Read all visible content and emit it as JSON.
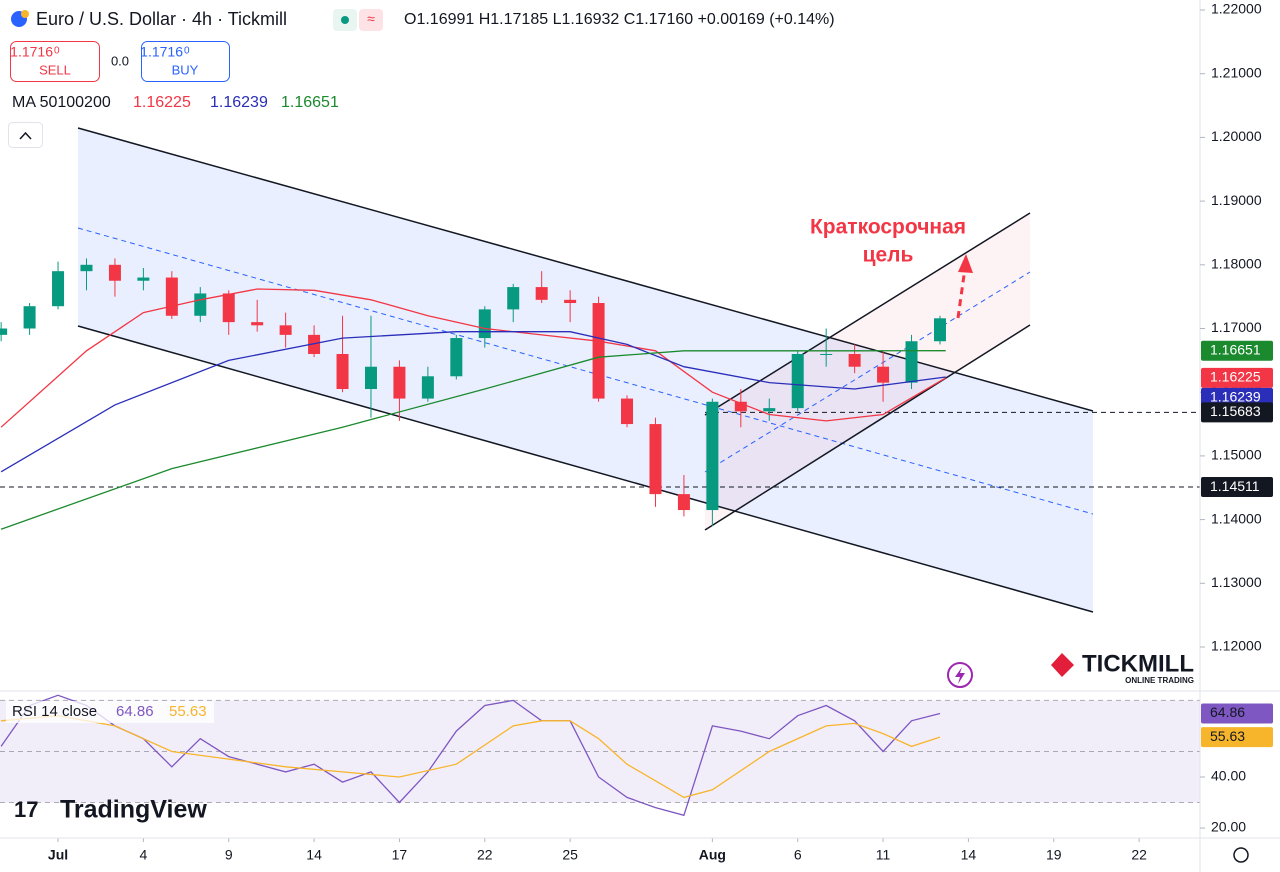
{
  "header": {
    "title": "Euro / U.S. Dollar · 4h · Tickmill",
    "ohlc": "O1.16991 H1.17185 L1.16932 C1.17160 +0.00169 (+0.14%)",
    "sell_price": "1.1716",
    "sell_pip": "0",
    "sell": "SELL",
    "spread": "0.0",
    "buy_price": "1.1716",
    "buy_pip": "0",
    "buy": "BUY",
    "ma_label": "MA 50100200",
    "rsi_label": "RSI 14 close",
    "annotation": [
      "Краткосрочная",
      "цель"
    ]
  },
  "branding": {
    "broker": "TICKMILL",
    "broker_tagline": "ONLINE TRADING",
    "platform": "TradingView"
  },
  "chart_data": [
    {
      "type": "candlestick",
      "up_color": "#089981",
      "down_color": "#f23645",
      "xlim": [
        -2.04,
        40.14
      ],
      "xticks": [
        {
          "value": 0,
          "label": "Jul"
        },
        {
          "value": 3,
          "label": "4"
        },
        {
          "value": 6,
          "label": "9"
        },
        {
          "value": 9,
          "label": "14"
        },
        {
          "value": 12,
          "label": "17"
        },
        {
          "value": 15,
          "label": "22"
        },
        {
          "value": 18,
          "label": "25"
        },
        {
          "value": 23,
          "label": "Aug"
        },
        {
          "value": 26,
          "label": "6"
        },
        {
          "value": 29,
          "label": "11"
        },
        {
          "value": 32,
          "label": "14"
        },
        {
          "value": 35,
          "label": "19"
        },
        {
          "value": 38,
          "label": "22"
        }
      ],
      "ylim": [
        1.11325,
        1.22157
      ],
      "yticks": [
        {
          "value": 1.12,
          "label": "1.12000"
        },
        {
          "value": 1.13,
          "label": "1.13000"
        },
        {
          "value": 1.14,
          "label": "1.14000"
        },
        {
          "value": 1.15,
          "label": "1.15000"
        },
        {
          "value": 1.16,
          "label": "1.16000"
        },
        {
          "value": 1.17,
          "label": "1.17000"
        },
        {
          "value": 1.18,
          "label": "1.18000"
        },
        {
          "value": 1.19,
          "label": "1.19000"
        },
        {
          "value": 1.2,
          "label": "1.20000"
        },
        {
          "value": 1.21,
          "label": "1.21000"
        },
        {
          "value": 1.22,
          "label": "1.22000"
        }
      ],
      "x": [
        -2,
        -1,
        0,
        1,
        2,
        3,
        4,
        5,
        6,
        7,
        8,
        9,
        10,
        11,
        12,
        13,
        14,
        15,
        16,
        17,
        18,
        19,
        20,
        21,
        22,
        23,
        24,
        25,
        26,
        27,
        28,
        29,
        30,
        31
      ],
      "open": [
        1.169,
        1.17,
        1.1735,
        1.179,
        1.18,
        1.1775,
        1.178,
        1.172,
        1.1755,
        1.171,
        1.1705,
        1.169,
        1.166,
        1.1605,
        1.164,
        1.159,
        1.1625,
        1.1685,
        1.173,
        1.1765,
        1.1745,
        1.174,
        1.159,
        1.155,
        1.144,
        1.1415,
        1.1585,
        1.157,
        1.1575,
        1.166,
        1.166,
        1.164,
        1.1615,
        1.168
      ],
      "high": [
        1.171,
        1.174,
        1.1805,
        1.181,
        1.181,
        1.1795,
        1.179,
        1.1765,
        1.176,
        1.1745,
        1.1725,
        1.1705,
        1.172,
        1.172,
        1.165,
        1.164,
        1.169,
        1.1735,
        1.177,
        1.179,
        1.176,
        1.175,
        1.1595,
        1.156,
        1.147,
        1.159,
        1.1605,
        1.159,
        1.1665,
        1.17,
        1.1675,
        1.1665,
        1.169,
        1.172
      ],
      "low": [
        1.168,
        1.169,
        1.173,
        1.176,
        1.175,
        1.176,
        1.1715,
        1.171,
        1.169,
        1.1695,
        1.167,
        1.1655,
        1.16,
        1.156,
        1.1555,
        1.1585,
        1.162,
        1.167,
        1.171,
        1.174,
        1.171,
        1.1585,
        1.1545,
        1.142,
        1.1405,
        1.139,
        1.1545,
        1.1555,
        1.157,
        1.164,
        1.163,
        1.1585,
        1.1605,
        1.1675
      ],
      "close": [
        1.17,
        1.1735,
        1.179,
        1.18,
        1.1775,
        1.178,
        1.172,
        1.1755,
        1.171,
        1.1705,
        1.169,
        1.166,
        1.1605,
        1.164,
        1.159,
        1.1625,
        1.1685,
        1.173,
        1.1765,
        1.1745,
        1.174,
        1.159,
        1.155,
        1.144,
        1.1415,
        1.1585,
        1.157,
        1.1575,
        1.166,
        1.166,
        1.164,
        1.1615,
        1.168,
        1.1716
      ],
      "series": [
        {
          "color": "#f23645",
          "x": [
            -2,
            1,
            3,
            5,
            7,
            9,
            11,
            13,
            15,
            17,
            19,
            21,
            23,
            25,
            27,
            29,
            31.2
          ],
          "values": [
            1.1545,
            1.1665,
            1.1725,
            1.1745,
            1.1762,
            1.176,
            1.1745,
            1.172,
            1.17,
            1.169,
            1.168,
            1.1665,
            1.16,
            1.1565,
            1.1555,
            1.1565,
            1.16225
          ]
        },
        {
          "color": "#2a2eb8",
          "x": [
            -2,
            2,
            6,
            10,
            14,
            18,
            20,
            22,
            25,
            28,
            31.2
          ],
          "values": [
            1.1475,
            1.158,
            1.165,
            1.1685,
            1.1695,
            1.1695,
            1.1675,
            1.164,
            1.1615,
            1.1605,
            1.16239
          ]
        },
        {
          "color": "#1b8a2e",
          "x": [
            -2,
            4,
            10,
            15,
            19,
            22,
            28,
            31.2
          ],
          "values": [
            1.1385,
            1.148,
            1.1545,
            1.1605,
            1.1655,
            1.1665,
            1.1665,
            1.16651
          ]
        }
      ],
      "levels": [
        1.15683,
        1.14511
      ]
    },
    {
      "type": "line",
      "ylim": [
        16.1,
        73.3
      ],
      "yticks": [
        {
          "value": 20,
          "label": "20.00"
        },
        {
          "value": 40,
          "label": "40.00"
        }
      ],
      "band": [
        30,
        70
      ],
      "midline": 50,
      "band_color": "#7e57c2",
      "series": [
        {
          "color": "#7e57c2",
          "x": [
            -2,
            -1,
            0,
            1,
            2,
            3,
            4,
            5,
            6,
            7,
            8,
            9,
            10,
            11,
            12,
            13,
            14,
            15,
            16,
            17,
            18,
            19,
            20,
            21,
            22,
            23,
            24,
            25,
            26,
            27,
            28,
            29,
            30,
            31
          ],
          "values": [
            52,
            68,
            72,
            68,
            60,
            55,
            44,
            55,
            48,
            45,
            42,
            45,
            38,
            42,
            30,
            42,
            58,
            68,
            70,
            62,
            62,
            40,
            32,
            28,
            25,
            60,
            58,
            55,
            64,
            68,
            62,
            50,
            62,
            64.86
          ]
        },
        {
          "color": "#f7b52c",
          "x": [
            -2,
            0,
            2,
            4,
            6,
            8,
            10,
            12,
            14,
            16,
            17,
            18,
            19,
            20,
            22,
            23,
            25,
            27,
            28,
            29,
            30,
            31
          ],
          "values": [
            62,
            64,
            60,
            50,
            47,
            44,
            42,
            40,
            45,
            60,
            62,
            62,
            55,
            45,
            32,
            35,
            50,
            60,
            61,
            57,
            52,
            55.63
          ]
        }
      ]
    }
  ]
}
